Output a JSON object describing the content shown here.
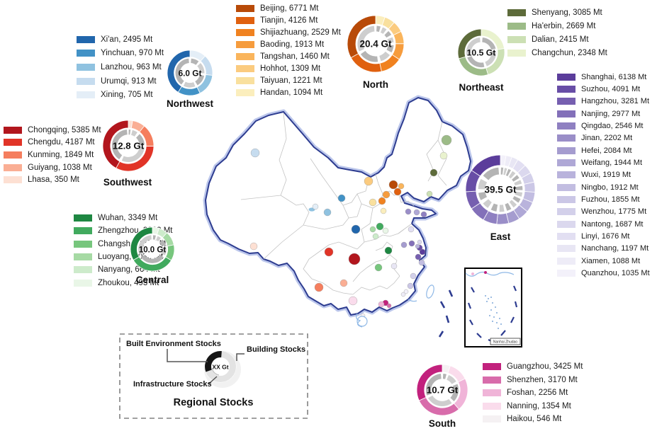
{
  "unit": "Mt",
  "chart_data": [
    {
      "type": "pie",
      "style": "donut",
      "region": "Northwest",
      "center_label": "6.0 Gt",
      "total_gt": 6.0,
      "unit": "Mt",
      "categories": [
        "Xi'an",
        "Yinchuan",
        "Lanzhou",
        "Urumqi",
        "Xining"
      ],
      "values": [
        2495,
        970,
        963,
        913,
        705
      ],
      "colors": [
        "#2166ac",
        "#4292c6",
        "#8fc2e0",
        "#c6dcef",
        "#e4eef7"
      ]
    },
    {
      "type": "pie",
      "style": "donut",
      "region": "North",
      "center_label": "20.4 Gt",
      "total_gt": 20.4,
      "unit": "Mt",
      "categories": [
        "Beijing",
        "Tianjin",
        "Shijiazhuang",
        "Baoding",
        "Tangshan",
        "Hohhot",
        "Taiyuan",
        "Handan"
      ],
      "values": [
        6771,
        4126,
        2529,
        1913,
        1460,
        1309,
        1221,
        1094
      ],
      "colors": [
        "#b84a08",
        "#e0600f",
        "#f08220",
        "#f69c3d",
        "#fab55c",
        "#fbcb7f",
        "#f9e09e",
        "#fbeebd"
      ]
    },
    {
      "type": "pie",
      "style": "donut",
      "region": "Northeast",
      "center_label": "10.5 Gt",
      "total_gt": 10.5,
      "unit": "Mt",
      "categories": [
        "Shenyang",
        "Ha'erbin",
        "Dalian",
        "Changchun"
      ],
      "values": [
        3085,
        2669,
        2415,
        2348
      ],
      "colors": [
        "#5d6b3a",
        "#9cbb87",
        "#cce0b4",
        "#e9f2ce"
      ]
    },
    {
      "type": "pie",
      "style": "donut",
      "region": "Southwest",
      "center_label": "12.8 Gt",
      "total_gt": 12.8,
      "unit": "Mt",
      "categories": [
        "Chongqing",
        "Chengdu",
        "Kunming",
        "Guiyang",
        "Lhasa"
      ],
      "values": [
        5385,
        4187,
        1849,
        1038,
        350
      ],
      "colors": [
        "#b2161d",
        "#e13427",
        "#f57e5e",
        "#faae94",
        "#fde0d3"
      ]
    },
    {
      "type": "pie",
      "style": "donut",
      "region": "Central",
      "center_label": "10.0 Gt",
      "total_gt": 10.0,
      "unit": "Mt",
      "categories": [
        "Wuhan",
        "Zhengzhou",
        "Changsha",
        "Luoyang",
        "Nanyang",
        "Zhoukou"
      ],
      "values": [
        3349,
        3323,
        1179,
        1036,
        664,
        493
      ],
      "colors": [
        "#1e8742",
        "#41aa5e",
        "#77c67d",
        "#a6daa4",
        "#cdebcb",
        "#e9f6e7"
      ]
    },
    {
      "type": "pie",
      "style": "donut",
      "region": "East",
      "center_label": "39.5 Gt",
      "total_gt": 39.5,
      "unit": "Mt",
      "categories": [
        "Shanghai",
        "Suzhou",
        "Hangzhou",
        "Nanjing",
        "Qingdao",
        "Jinan",
        "Hefei",
        "Weifang",
        "Wuxi",
        "Ningbo",
        "Fuzhou",
        "Wenzhou",
        "Nantong",
        "Linyi",
        "Nanchang",
        "Xiamen",
        "Quanzhou"
      ],
      "values": [
        6138,
        4091,
        3281,
        2977,
        2546,
        2202,
        2084,
        1944,
        1919,
        1912,
        1855,
        1775,
        1687,
        1676,
        1197,
        1088,
        1035
      ],
      "colors": [
        "#5b3d9b",
        "#684ea6",
        "#765fb0",
        "#8370b9",
        "#8f80c1",
        "#9a8ec8",
        "#a59ccf",
        "#afa8d6",
        "#b9b3dc",
        "#c2bde1",
        "#cbc7e6",
        "#d3d0ea",
        "#dbd8ee",
        "#e2dff2",
        "#e8e6f4",
        "#eeecf7",
        "#f3f1fa"
      ]
    },
    {
      "type": "pie",
      "style": "donut",
      "region": "South",
      "center_label": "10.7 Gt",
      "total_gt": 10.7,
      "unit": "Mt",
      "categories": [
        "Guangzhou",
        "Shenzhen",
        "Foshan",
        "Nanning",
        "Haikou"
      ],
      "values": [
        3425,
        3170,
        2256,
        1354,
        546
      ],
      "colors": [
        "#c2217d",
        "#d86cab",
        "#f0b4d8",
        "#fadcec",
        "#f5f1f3"
      ]
    }
  ],
  "legend_box": {
    "built_label": "Built Environment Stocks",
    "building_label": "Building Stocks",
    "infrastructure_label": "Infrastructure Stocks",
    "center_label": "XX Gt",
    "title": "Regional Stocks"
  },
  "inset": {
    "label": "Nanhai Zhudao"
  },
  "inner_ring_colors": [
    "#b4b4b4",
    "#cecece"
  ]
}
